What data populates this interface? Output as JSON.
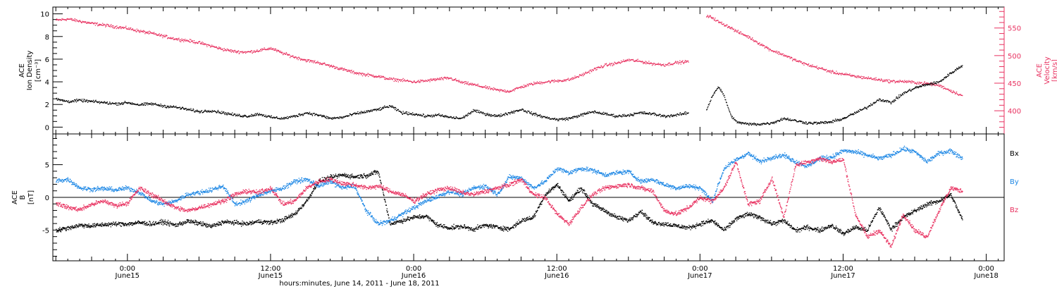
{
  "figure": {
    "xlabel": "hours:minutes, June 14, 2011 - June 18, 2011",
    "x_ticks": [
      {
        "time": "0:00",
        "date": "June15",
        "t": 20
      },
      {
        "time": "12:00",
        "date": "June15",
        "t": 32
      },
      {
        "time": "0:00",
        "date": "June16",
        "t": 44
      },
      {
        "time": "12:00",
        "date": "June16",
        "t": 56
      },
      {
        "time": "0:00",
        "date": "June17",
        "t": 68
      },
      {
        "time": "12:00",
        "date": "June17",
        "t": 80
      },
      {
        "time": "0:00",
        "date": "June18",
        "t": 92
      }
    ]
  },
  "colors": {
    "black": "#000000",
    "pink": "#e8305f",
    "blue": "#1e88e5"
  },
  "chart_data": [
    {
      "type": "scatter",
      "title": "",
      "xlabel": "hours:minutes, June 14, 2011 - June 18, 2011",
      "ylabel": "ACE Ion Density [cm⁻³]",
      "ylabel_lines": [
        "ACE",
        "Ion Density",
        "[cm⁻³]"
      ],
      "ylabel_right": "ACE Velocity [km/s]",
      "ylabel_right_lines": [
        "ACE",
        "Velocity",
        "[km/s]"
      ],
      "xlim": [
        13.75,
        93.5
      ],
      "ylim": [
        -0.6,
        10.6
      ],
      "ylim_right": [
        358,
        588
      ],
      "yticks": [
        "0",
        "2",
        "4",
        "6",
        "8",
        "10"
      ],
      "yticks_right": [
        "400",
        "450",
        "500",
        "550"
      ],
      "series": [
        {
          "name": "Ion Density",
          "axis": "left",
          "color": "black",
          "x": [
            14,
            15,
            16,
            17,
            18,
            19,
            20,
            21,
            22,
            23,
            24,
            25,
            26,
            27,
            28,
            29,
            30,
            31,
            32,
            33,
            34,
            35,
            36,
            37,
            38,
            39,
            40,
            41,
            42,
            43,
            44,
            45,
            46,
            47,
            48,
            49,
            50,
            51,
            52,
            53,
            54,
            55,
            56,
            57,
            58,
            59,
            60,
            61,
            62,
            63,
            64,
            65,
            66,
            67,
            67.5,
            68.5,
            69,
            69.5,
            70,
            70.5,
            71,
            72,
            73,
            74,
            75,
            76,
            77,
            78,
            79,
            80,
            81,
            82,
            83,
            84,
            85,
            86,
            87,
            88,
            89,
            90
          ],
          "y": [
            2.5,
            2.3,
            2.4,
            2.3,
            2.2,
            2.1,
            2.2,
            2.0,
            2.1,
            1.9,
            1.8,
            1.6,
            1.4,
            1.5,
            1.3,
            1.1,
            1.0,
            1.2,
            0.9,
            0.8,
            1.0,
            1.3,
            1.1,
            0.8,
            0.9,
            1.2,
            1.4,
            1.6,
            1.9,
            1.3,
            1.2,
            1.0,
            1.1,
            0.9,
            0.8,
            1.5,
            1.2,
            1.0,
            1.3,
            1.6,
            1.2,
            0.9,
            0.7,
            0.8,
            1.1,
            1.4,
            1.2,
            1.0,
            1.1,
            1.3,
            1.2,
            1.0,
            1.1,
            1.3,
            null,
            1.5,
            2.8,
            3.6,
            2.8,
            1.2,
            0.5,
            0.3,
            0.3,
            0.4,
            0.8,
            0.6,
            0.4,
            0.4,
            0.5,
            0.8,
            1.3,
            1.8,
            2.5,
            2.2,
            3.0,
            3.5,
            3.8,
            4.0,
            4.8,
            5.5
          ]
        },
        {
          "name": "Velocity",
          "axis": "right",
          "color": "pink",
          "x": [
            14,
            15,
            16,
            17,
            18,
            19,
            20,
            21,
            22,
            23,
            24,
            25,
            26,
            27,
            28,
            29,
            30,
            31,
            32,
            33,
            34,
            35,
            36,
            37,
            38,
            39,
            40,
            41,
            42,
            43,
            44,
            45,
            46,
            47,
            48,
            49,
            50,
            51,
            52,
            53,
            54,
            55,
            56,
            57,
            58,
            59,
            60,
            61,
            62,
            63,
            64,
            65,
            66,
            67,
            67.5,
            68.5,
            69,
            69.5,
            70,
            70.5,
            71,
            72,
            73,
            74,
            75,
            76,
            77,
            78,
            79,
            80,
            81,
            82,
            83,
            84,
            85,
            86,
            87,
            88,
            89,
            90
          ],
          "y": [
            565,
            567,
            563,
            559,
            556,
            553,
            550,
            545,
            541,
            536,
            531,
            528,
            524,
            518,
            512,
            508,
            507,
            510,
            514,
            505,
            498,
            492,
            488,
            482,
            476,
            470,
            466,
            463,
            458,
            456,
            453,
            455,
            458,
            460,
            452,
            448,
            443,
            438,
            436,
            444,
            450,
            453,
            455,
            457,
            465,
            475,
            483,
            487,
            493,
            490,
            486,
            484,
            488,
            490,
            null,
            572,
            570,
            562,
            557,
            552,
            545,
            535,
            522,
            510,
            502,
            492,
            484,
            478,
            471,
            467,
            463,
            460,
            457,
            454,
            454,
            452,
            450,
            447,
            437,
            428
          ]
        }
      ]
    },
    {
      "type": "scatter",
      "title": "",
      "xlabel": "hours:minutes, June 14, 2011 - June 18, 2011",
      "ylabel": "ACE B [nT]",
      "ylabel_lines": [
        "ACE",
        "B",
        "[nT]"
      ],
      "xlim": [
        13.75,
        93.5
      ],
      "ylim": [
        -9.7,
        9.7
      ],
      "yticks": [
        "-5",
        "0",
        "5"
      ],
      "legend": [
        "Bx",
        "By",
        "Bz"
      ],
      "legend_position": "right",
      "series": [
        {
          "name": "Bx",
          "color": "black",
          "x": [
            14,
            15,
            16,
            17,
            18,
            19,
            20,
            21,
            22,
            23,
            24,
            25,
            26,
            27,
            28,
            29,
            30,
            31,
            32,
            33,
            34,
            35,
            36,
            37,
            38,
            39,
            40,
            41,
            42,
            43,
            44,
            45,
            46,
            47,
            48,
            49,
            50,
            51,
            52,
            53,
            54,
            55,
            56,
            57,
            58,
            59,
            60,
            61,
            62,
            63,
            64,
            65,
            66,
            67,
            68,
            69,
            70,
            71,
            72,
            73,
            74,
            75,
            76,
            77,
            78,
            79,
            80,
            81,
            82,
            83,
            84,
            85,
            86,
            87,
            88,
            89,
            90
          ],
          "y": [
            -5.0,
            -4.6,
            -4.2,
            -4.3,
            -4.1,
            -4.0,
            -4.0,
            -3.8,
            -4.0,
            -3.7,
            -4.2,
            -3.6,
            -3.9,
            -4.4,
            -3.7,
            -3.8,
            -4.0,
            -3.6,
            -3.8,
            -3.4,
            -2.5,
            -0.5,
            2.5,
            3.1,
            3.5,
            3.2,
            3.4,
            4.0,
            -4.0,
            -3.5,
            -3.0,
            -2.8,
            -4.2,
            -4.6,
            -4.4,
            -4.8,
            -4.2,
            -4.5,
            -4.8,
            -3.5,
            -3.0,
            0.5,
            2.0,
            -0.5,
            1.5,
            -1.0,
            -2.0,
            -3.0,
            -3.5,
            -2.0,
            -3.8,
            -4.0,
            -4.3,
            -4.6,
            -4.0,
            -3.5,
            -5.0,
            -3.2,
            -2.5,
            -3.0,
            -4.0,
            -3.5,
            -5.0,
            -4.5,
            -5.0,
            -4.2,
            -5.5,
            -4.5,
            -5.0,
            -1.5,
            -4.8,
            -3.0,
            -2.0,
            -1.0,
            -0.5,
            0.5,
            -3.5
          ]
        },
        {
          "name": "By",
          "color": "blue",
          "x": [
            14,
            15,
            16,
            17,
            18,
            19,
            20,
            21,
            22,
            23,
            24,
            25,
            26,
            27,
            28,
            29,
            30,
            31,
            32,
            33,
            34,
            35,
            36,
            37,
            38,
            39,
            40,
            41,
            42,
            43,
            44,
            45,
            46,
            47,
            48,
            49,
            50,
            51,
            52,
            53,
            54,
            55,
            56,
            57,
            58,
            59,
            60,
            61,
            62,
            63,
            64,
            65,
            66,
            67,
            68,
            69,
            70,
            71,
            72,
            73,
            74,
            75,
            76,
            77,
            78,
            79,
            80,
            81,
            82,
            83,
            84,
            85,
            86,
            87,
            88,
            89,
            90
          ],
          "y": [
            2.6,
            2.8,
            1.5,
            1.3,
            1.4,
            1.2,
            1.5,
            0.8,
            -0.5,
            -1.0,
            -0.5,
            0.5,
            0.8,
            1.2,
            1.8,
            -1.0,
            -0.5,
            0.5,
            1.0,
            1.5,
            2.5,
            2.8,
            1.8,
            2.5,
            1.5,
            1.8,
            -2.0,
            -4.0,
            -3.5,
            -2.5,
            -1.5,
            -0.5,
            0.2,
            1.0,
            0.5,
            1.5,
            1.8,
            0.5,
            3.2,
            3.0,
            1.5,
            2.5,
            4.5,
            3.8,
            4.5,
            4.2,
            3.5,
            3.8,
            4.0,
            2.5,
            2.8,
            2.0,
            1.5,
            1.8,
            1.5,
            -0.5,
            4.5,
            5.8,
            6.8,
            5.5,
            6.2,
            6.5,
            5.5,
            4.8,
            6.0,
            6.2,
            7.2,
            7.0,
            6.5,
            6.0,
            6.5,
            7.5,
            7.0,
            5.5,
            6.8,
            7.2,
            6.0
          ]
        },
        {
          "name": "Bz",
          "color": "pink",
          "x": [
            14,
            15,
            16,
            17,
            18,
            19,
            20,
            21,
            22,
            23,
            24,
            25,
            26,
            27,
            28,
            29,
            30,
            31,
            32,
            33,
            34,
            35,
            36,
            37,
            38,
            39,
            40,
            41,
            42,
            43,
            44,
            45,
            46,
            47,
            48,
            49,
            50,
            51,
            52,
            53,
            54,
            55,
            56,
            57,
            58,
            59,
            60,
            61,
            62,
            63,
            64,
            65,
            66,
            67,
            68,
            69,
            70,
            71,
            72,
            73,
            74,
            75,
            76,
            77,
            78,
            79,
            80,
            81,
            82,
            83,
            84,
            85,
            86,
            87,
            88,
            89,
            90
          ],
          "y": [
            -0.8,
            -1.5,
            -1.8,
            -1.0,
            -0.5,
            -1.2,
            -0.8,
            1.5,
            0.5,
            -0.5,
            -1.5,
            -2.0,
            -1.5,
            -1.0,
            -0.5,
            0.5,
            1.0,
            0.8,
            1.5,
            -1.0,
            -0.5,
            1.5,
            2.5,
            2.8,
            2.2,
            2.0,
            1.5,
            1.8,
            1.0,
            0.5,
            -0.5,
            0.5,
            1.2,
            1.5,
            0.8,
            0.5,
            1.0,
            1.5,
            2.0,
            2.8,
            0.5,
            0.0,
            -2.5,
            -4.0,
            -1.5,
            0.5,
            1.5,
            1.8,
            2.0,
            1.5,
            1.0,
            -2.0,
            -2.5,
            -1.5,
            0.0,
            -0.5,
            1.5,
            5.5,
            -1.0,
            -0.5,
            3.0,
            -3.0,
            5.0,
            5.5,
            6.0,
            5.5,
            5.8,
            -2.5,
            -6.0,
            -5.0,
            -7.5,
            -2.5,
            -5.0,
            -6.0,
            -2.0,
            1.5,
            1.0
          ]
        }
      ]
    }
  ]
}
